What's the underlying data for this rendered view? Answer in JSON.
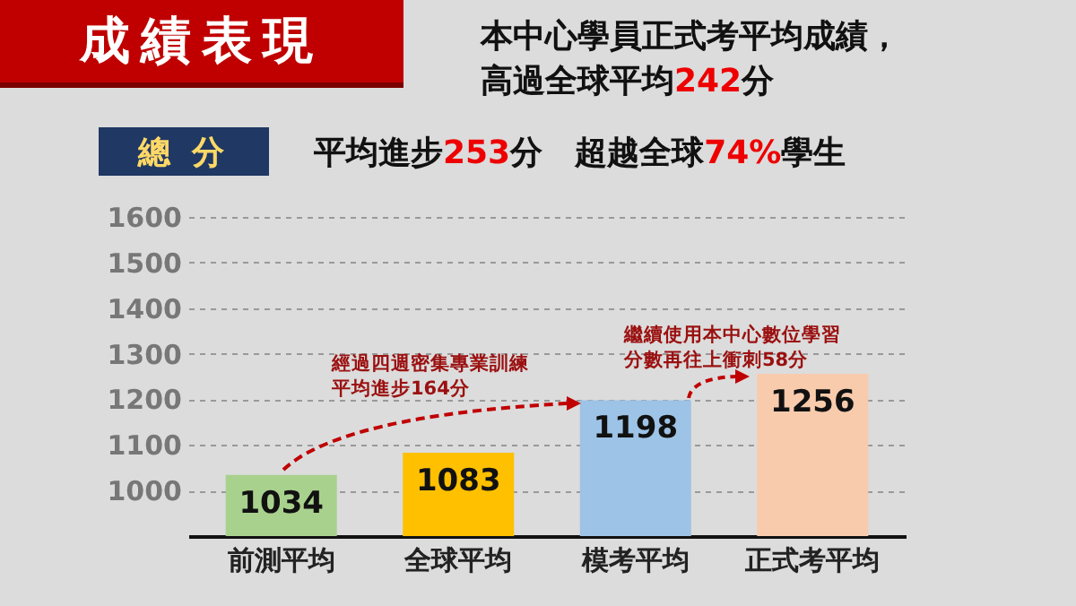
{
  "chart_data": {
    "type": "bar",
    "title": "成績表現",
    "subtitle": "本中心學員正式考平均成績，高過全球平均242分",
    "ylabel": "總 分",
    "annotations": [
      "平均進步253分　超越全球74%學生",
      "經過四週密集專業訓練平均進步164分",
      "繼續使用本中心數位學習分數再往上衝刺58分"
    ],
    "categories": [
      "前測平均",
      "全球平均",
      "模考平均",
      "正式考平均"
    ],
    "values": [
      1034,
      1083,
      1198,
      1256
    ],
    "colors": [
      "#a9d18e",
      "#ffc000",
      "#9dc3e6",
      "#f8cbad"
    ],
    "ylim": [
      900,
      1600
    ],
    "yticks": [
      1000,
      1100,
      1200,
      1300,
      1400,
      1500,
      1600
    ],
    "grid": "y",
    "data_labels": true
  }
}
